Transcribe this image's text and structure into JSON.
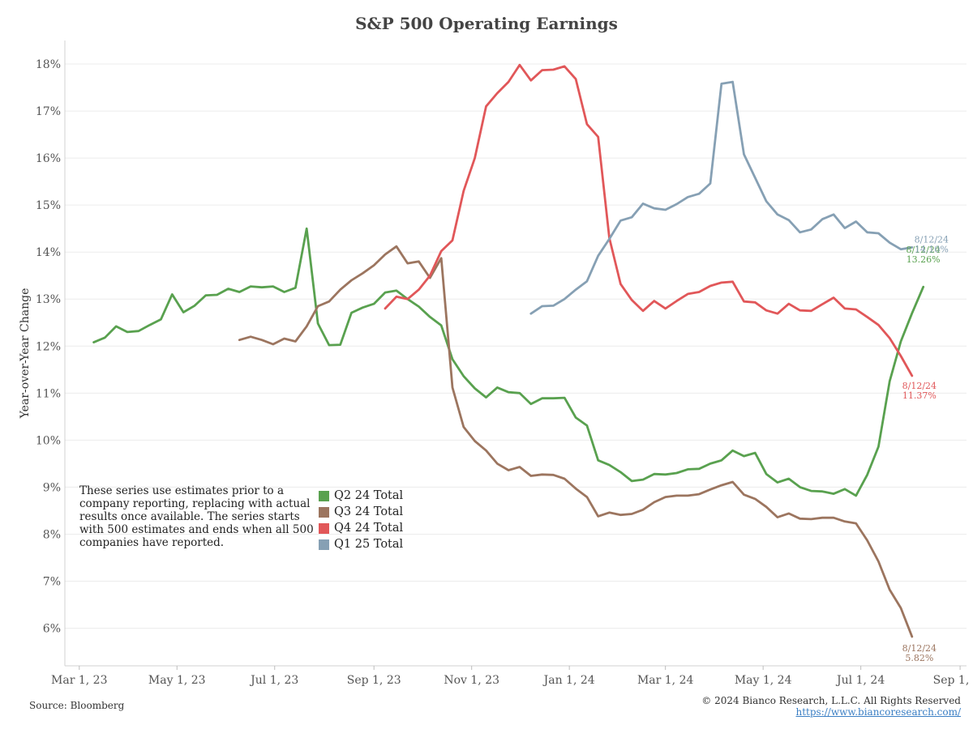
{
  "chart_data": {
    "type": "line",
    "title": "S&P 500 Operating Earnings",
    "ylabel": "Year-over-Year Change",
    "xlabel": "",
    "x_range": [
      "2023-02-20",
      "2024-09-05"
    ],
    "ylim": [
      5.2,
      18.5
    ],
    "y_ticks": [
      "6%",
      "7%",
      "8%",
      "9%",
      "10%",
      "11%",
      "12%",
      "13%",
      "14%",
      "15%",
      "16%",
      "17%",
      "18%"
    ],
    "x_ticks": [
      {
        "date": "2023-03-01",
        "label": "Mar 1, 23"
      },
      {
        "date": "2023-05-01",
        "label": "May 1, 23"
      },
      {
        "date": "2023-07-01",
        "label": "Jul 1, 23"
      },
      {
        "date": "2023-09-01",
        "label": "Sep 1, 23"
      },
      {
        "date": "2023-11-01",
        "label": "Nov 1, 23"
      },
      {
        "date": "2024-01-01",
        "label": "Jan 1, 24"
      },
      {
        "date": "2024-03-01",
        "label": "Mar 1, 24"
      },
      {
        "date": "2024-05-01",
        "label": "May 1, 24"
      },
      {
        "date": "2024-07-01",
        "label": "Jul 1, 24"
      },
      {
        "date": "2024-09-01",
        "label": "Sep 1, 24"
      }
    ],
    "grid": true,
    "legend_position": "lower-left",
    "series": [
      {
        "name": "Q2 24 Total",
        "color": "#59a14f",
        "end_label": {
          "date": "8/12/24",
          "value": "13.26%"
        },
        "points": [
          [
            "2023-03-10",
            12.08
          ],
          [
            "2023-03-17",
            12.18
          ],
          [
            "2023-03-24",
            12.42
          ],
          [
            "2023-03-31",
            12.3
          ],
          [
            "2023-04-07",
            12.32
          ],
          [
            "2023-04-14",
            12.45
          ],
          [
            "2023-04-21",
            12.57
          ],
          [
            "2023-04-28",
            13.1
          ],
          [
            "2023-05-05",
            12.72
          ],
          [
            "2023-05-12",
            12.86
          ],
          [
            "2023-05-19",
            13.08
          ],
          [
            "2023-05-26",
            13.09
          ],
          [
            "2023-06-02",
            13.22
          ],
          [
            "2023-06-09",
            13.15
          ],
          [
            "2023-06-16",
            13.27
          ],
          [
            "2023-06-23",
            13.25
          ],
          [
            "2023-06-30",
            13.27
          ],
          [
            "2023-07-07",
            13.15
          ],
          [
            "2023-07-14",
            13.24
          ],
          [
            "2023-07-21",
            14.5
          ],
          [
            "2023-07-28",
            12.48
          ],
          [
            "2023-08-04",
            12.02
          ],
          [
            "2023-08-11",
            12.03
          ],
          [
            "2023-08-18",
            12.71
          ],
          [
            "2023-08-25",
            12.82
          ],
          [
            "2023-09-01",
            12.9
          ],
          [
            "2023-09-08",
            13.14
          ],
          [
            "2023-09-15",
            13.18
          ],
          [
            "2023-09-22",
            13.0
          ],
          [
            "2023-09-29",
            12.84
          ],
          [
            "2023-10-06",
            12.62
          ],
          [
            "2023-10-13",
            12.44
          ],
          [
            "2023-10-20",
            11.72
          ],
          [
            "2023-10-27",
            11.36
          ],
          [
            "2023-11-03",
            11.1
          ],
          [
            "2023-11-10",
            10.91
          ],
          [
            "2023-11-17",
            11.12
          ],
          [
            "2023-11-24",
            11.02
          ],
          [
            "2023-12-01",
            11.0
          ],
          [
            "2023-12-08",
            10.77
          ],
          [
            "2023-12-15",
            10.89
          ],
          [
            "2023-12-22",
            10.89
          ],
          [
            "2023-12-29",
            10.9
          ],
          [
            "2024-01-05",
            10.48
          ],
          [
            "2024-01-12",
            10.31
          ],
          [
            "2024-01-19",
            9.57
          ],
          [
            "2024-01-26",
            9.47
          ],
          [
            "2024-02-02",
            9.32
          ],
          [
            "2024-02-09",
            9.13
          ],
          [
            "2024-02-16",
            9.16
          ],
          [
            "2024-02-23",
            9.28
          ],
          [
            "2024-03-01",
            9.27
          ],
          [
            "2024-03-08",
            9.3
          ],
          [
            "2024-03-15",
            9.38
          ],
          [
            "2024-03-22",
            9.39
          ],
          [
            "2024-03-29",
            9.5
          ],
          [
            "2024-04-05",
            9.57
          ],
          [
            "2024-04-12",
            9.78
          ],
          [
            "2024-04-19",
            9.66
          ],
          [
            "2024-04-26",
            9.73
          ],
          [
            "2024-05-03",
            9.28
          ],
          [
            "2024-05-10",
            9.1
          ],
          [
            "2024-05-17",
            9.18
          ],
          [
            "2024-05-24",
            9.0
          ],
          [
            "2024-05-31",
            8.92
          ],
          [
            "2024-06-07",
            8.91
          ],
          [
            "2024-06-14",
            8.86
          ],
          [
            "2024-06-21",
            8.96
          ],
          [
            "2024-06-28",
            8.82
          ],
          [
            "2024-07-05",
            9.26
          ],
          [
            "2024-07-12",
            9.86
          ],
          [
            "2024-07-19",
            11.25
          ],
          [
            "2024-07-26",
            12.1
          ],
          [
            "2024-08-02",
            12.7
          ],
          [
            "2024-08-09",
            13.26
          ]
        ]
      },
      {
        "name": "Q3 24 Total",
        "color": "#9c755f",
        "end_label": {
          "date": "8/12/24",
          "value": "5.82%"
        },
        "points": [
          [
            "2023-06-09",
            12.13
          ],
          [
            "2023-06-16",
            12.2
          ],
          [
            "2023-06-23",
            12.13
          ],
          [
            "2023-06-30",
            12.04
          ],
          [
            "2023-07-07",
            12.16
          ],
          [
            "2023-07-14",
            12.1
          ],
          [
            "2023-07-21",
            12.42
          ],
          [
            "2023-07-28",
            12.85
          ],
          [
            "2023-08-04",
            12.95
          ],
          [
            "2023-08-11",
            13.2
          ],
          [
            "2023-08-18",
            13.4
          ],
          [
            "2023-08-25",
            13.55
          ],
          [
            "2023-09-01",
            13.72
          ],
          [
            "2023-09-08",
            13.95
          ],
          [
            "2023-09-15",
            14.12
          ],
          [
            "2023-09-22",
            13.76
          ],
          [
            "2023-09-29",
            13.8
          ],
          [
            "2023-10-06",
            13.45
          ],
          [
            "2023-10-13",
            13.87
          ],
          [
            "2023-10-20",
            11.12
          ],
          [
            "2023-10-27",
            10.28
          ],
          [
            "2023-11-03",
            9.98
          ],
          [
            "2023-11-10",
            9.78
          ],
          [
            "2023-11-17",
            9.5
          ],
          [
            "2023-11-24",
            9.36
          ],
          [
            "2023-12-01",
            9.43
          ],
          [
            "2023-12-08",
            9.24
          ],
          [
            "2023-12-15",
            9.27
          ],
          [
            "2023-12-22",
            9.26
          ],
          [
            "2023-12-29",
            9.18
          ],
          [
            "2024-01-05",
            8.97
          ],
          [
            "2024-01-12",
            8.79
          ],
          [
            "2024-01-19",
            8.38
          ],
          [
            "2024-01-26",
            8.46
          ],
          [
            "2024-02-02",
            8.41
          ],
          [
            "2024-02-09",
            8.43
          ],
          [
            "2024-02-16",
            8.52
          ],
          [
            "2024-02-23",
            8.68
          ],
          [
            "2024-03-01",
            8.79
          ],
          [
            "2024-03-08",
            8.82
          ],
          [
            "2024-03-15",
            8.82
          ],
          [
            "2024-03-22",
            8.85
          ],
          [
            "2024-03-29",
            8.95
          ],
          [
            "2024-04-05",
            9.04
          ],
          [
            "2024-04-12",
            9.11
          ],
          [
            "2024-04-19",
            8.84
          ],
          [
            "2024-04-26",
            8.75
          ],
          [
            "2024-05-03",
            8.58
          ],
          [
            "2024-05-10",
            8.36
          ],
          [
            "2024-05-17",
            8.44
          ],
          [
            "2024-05-24",
            8.33
          ],
          [
            "2024-05-31",
            8.32
          ],
          [
            "2024-06-07",
            8.35
          ],
          [
            "2024-06-14",
            8.35
          ],
          [
            "2024-06-21",
            8.27
          ],
          [
            "2024-06-28",
            8.23
          ],
          [
            "2024-07-05",
            7.87
          ],
          [
            "2024-07-12",
            7.42
          ],
          [
            "2024-07-19",
            6.82
          ],
          [
            "2024-07-26",
            6.43
          ],
          [
            "2024-08-02",
            5.82
          ]
        ]
      },
      {
        "name": "Q4 24 Total",
        "color": "#e15759",
        "end_label": {
          "date": "8/12/24",
          "value": "11.37%"
        },
        "points": [
          [
            "2023-09-08",
            12.8
          ],
          [
            "2023-09-15",
            13.05
          ],
          [
            "2023-09-22",
            13.0
          ],
          [
            "2023-09-29",
            13.2
          ],
          [
            "2023-10-06",
            13.5
          ],
          [
            "2023-10-13",
            14.02
          ],
          [
            "2023-10-20",
            14.25
          ],
          [
            "2023-10-27",
            15.3
          ],
          [
            "2023-11-03",
            16.0
          ],
          [
            "2023-11-10",
            17.1
          ],
          [
            "2023-11-17",
            17.38
          ],
          [
            "2023-11-24",
            17.62
          ],
          [
            "2023-12-01",
            17.98
          ],
          [
            "2023-12-08",
            17.65
          ],
          [
            "2023-12-15",
            17.87
          ],
          [
            "2023-12-22",
            17.88
          ],
          [
            "2023-12-29",
            17.95
          ],
          [
            "2024-01-05",
            17.68
          ],
          [
            "2024-01-12",
            16.72
          ],
          [
            "2024-01-19",
            16.45
          ],
          [
            "2024-01-26",
            14.3
          ],
          [
            "2024-02-02",
            13.32
          ],
          [
            "2024-02-09",
            12.98
          ],
          [
            "2024-02-16",
            12.75
          ],
          [
            "2024-02-23",
            12.96
          ],
          [
            "2024-03-01",
            12.8
          ],
          [
            "2024-03-08",
            12.96
          ],
          [
            "2024-03-15",
            13.11
          ],
          [
            "2024-03-22",
            13.15
          ],
          [
            "2024-03-29",
            13.28
          ],
          [
            "2024-04-05",
            13.35
          ],
          [
            "2024-04-12",
            13.37
          ],
          [
            "2024-04-19",
            12.95
          ],
          [
            "2024-04-26",
            12.93
          ],
          [
            "2024-05-03",
            12.76
          ],
          [
            "2024-05-10",
            12.69
          ],
          [
            "2024-05-17",
            12.9
          ],
          [
            "2024-05-24",
            12.76
          ],
          [
            "2024-05-31",
            12.75
          ],
          [
            "2024-06-07",
            12.89
          ],
          [
            "2024-06-14",
            13.03
          ],
          [
            "2024-06-21",
            12.8
          ],
          [
            "2024-06-28",
            12.78
          ],
          [
            "2024-07-05",
            12.62
          ],
          [
            "2024-07-12",
            12.45
          ],
          [
            "2024-07-19",
            12.17
          ],
          [
            "2024-07-26",
            11.79
          ],
          [
            "2024-08-02",
            11.37
          ]
        ]
      },
      {
        "name": "Q1 25 Total",
        "color": "#86a0b4",
        "end_label": {
          "date": "8/12/24",
          "value": "14.10%"
        },
        "points": [
          [
            "2023-12-08",
            12.69
          ],
          [
            "2023-12-15",
            12.85
          ],
          [
            "2023-12-22",
            12.86
          ],
          [
            "2023-12-29",
            13.0
          ],
          [
            "2024-01-05",
            13.2
          ],
          [
            "2024-01-12",
            13.38
          ],
          [
            "2024-01-19",
            13.92
          ],
          [
            "2024-01-26",
            14.28
          ],
          [
            "2024-02-02",
            14.67
          ],
          [
            "2024-02-09",
            14.74
          ],
          [
            "2024-02-16",
            15.03
          ],
          [
            "2024-02-23",
            14.93
          ],
          [
            "2024-03-01",
            14.9
          ],
          [
            "2024-03-08",
            15.02
          ],
          [
            "2024-03-15",
            15.17
          ],
          [
            "2024-03-22",
            15.24
          ],
          [
            "2024-03-29",
            15.46
          ],
          [
            "2024-04-05",
            17.58
          ],
          [
            "2024-04-12",
            17.62
          ],
          [
            "2024-04-19",
            16.08
          ],
          [
            "2024-04-26",
            15.58
          ],
          [
            "2024-05-03",
            15.08
          ],
          [
            "2024-05-10",
            14.8
          ],
          [
            "2024-05-17",
            14.68
          ],
          [
            "2024-05-24",
            14.42
          ],
          [
            "2024-05-31",
            14.48
          ],
          [
            "2024-06-07",
            14.7
          ],
          [
            "2024-06-14",
            14.8
          ],
          [
            "2024-06-21",
            14.51
          ],
          [
            "2024-06-28",
            14.65
          ],
          [
            "2024-07-05",
            14.42
          ],
          [
            "2024-07-12",
            14.4
          ],
          [
            "2024-07-19",
            14.2
          ],
          [
            "2024-07-26",
            14.06
          ],
          [
            "2024-08-02",
            14.1
          ]
        ]
      }
    ]
  },
  "note": "These series use estimates prior to a company reporting, replacing with actual results once available. The series starts with 500 estimates and ends when all 500 companies have reported.",
  "source": "Source: Bloomberg",
  "copyright": "© 2024 Bianco Research, L.L.C. All Rights Reserved",
  "url": "https://www.biancoresearch.com/"
}
